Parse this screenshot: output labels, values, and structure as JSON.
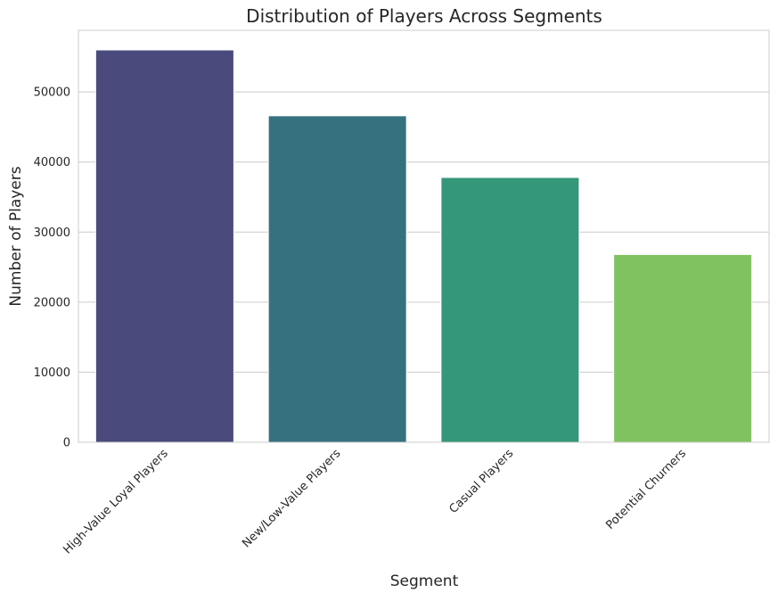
{
  "chart_data": {
    "type": "bar",
    "title": "Distribution of Players Across Segments",
    "xlabel": "Segment",
    "ylabel": "Number of Players",
    "categories": [
      "High-Value Loyal Players",
      "New/Low-Value Players",
      "Casual Players",
      "Potential Churners"
    ],
    "values": [
      56000,
      46600,
      37800,
      26800
    ],
    "colors": [
      "#4a4b7c",
      "#36717f",
      "#35977a",
      "#80c260"
    ],
    "ylim": [
      0,
      58800
    ],
    "yticks": [
      0,
      10000,
      20000,
      30000,
      40000,
      50000
    ],
    "grid": true,
    "style": "whitegrid",
    "tick_rotation": 45
  }
}
